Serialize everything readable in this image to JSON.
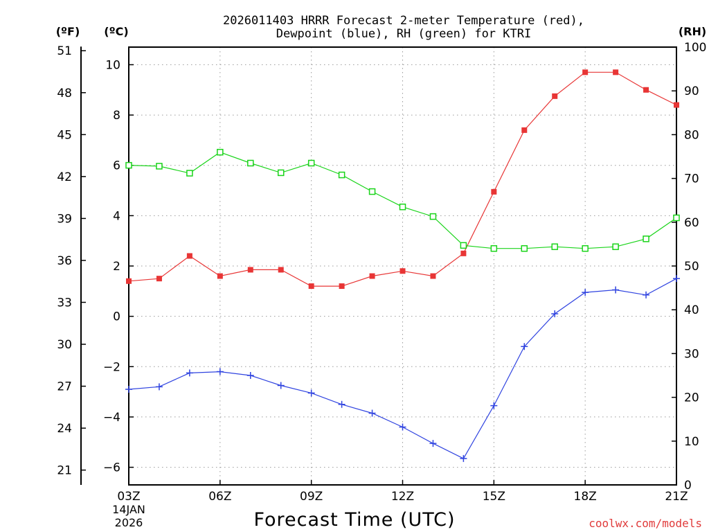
{
  "chart_data": {
    "type": "line",
    "title_line1": "2026011403 HRRR Forecast 2-meter Temperature (red),",
    "title_line2": "Dewpoint (blue), RH (green) for KTRI",
    "xlabel": "Forecast Time (UTC)",
    "date_lines": [
      "14JAN",
      "2026"
    ],
    "credit": "coolwx.com/models",
    "axis_headers": {
      "fahrenheit": "(ºF)",
      "celsius": "(ºC)",
      "rh": "(RH)"
    },
    "x_hours": [
      3,
      4,
      5,
      6,
      7,
      8,
      9,
      10,
      11,
      12,
      13,
      14,
      15,
      16,
      17,
      18,
      19,
      20,
      21
    ],
    "x_ticks": [
      {
        "hour": 3,
        "label": "03Z"
      },
      {
        "hour": 6,
        "label": "06Z"
      },
      {
        "hour": 9,
        "label": "09Z"
      },
      {
        "hour": 12,
        "label": "12Z"
      },
      {
        "hour": 15,
        "label": "15Z"
      },
      {
        "hour": 18,
        "label": "18Z"
      },
      {
        "hour": 21,
        "label": "21Z"
      }
    ],
    "x_range": [
      3,
      21
    ],
    "celsius_range": [
      -6.7,
      10.7
    ],
    "celsius_ticks": [
      {
        "value": 10,
        "label": "10"
      },
      {
        "value": 8,
        "label": "8"
      },
      {
        "value": 6,
        "label": "6"
      },
      {
        "value": 4,
        "label": "4"
      },
      {
        "value": 2,
        "label": "2"
      },
      {
        "value": 0,
        "label": "0"
      },
      {
        "value": -2,
        "label": "−2"
      },
      {
        "value": -4,
        "label": "−4"
      },
      {
        "value": -6,
        "label": "−6"
      }
    ],
    "fahrenheit_ticks": [
      {
        "value": 51,
        "label": "51"
      },
      {
        "value": 48,
        "label": "48"
      },
      {
        "value": 45,
        "label": "45"
      },
      {
        "value": 42,
        "label": "42"
      },
      {
        "value": 39,
        "label": "39"
      },
      {
        "value": 36,
        "label": "36"
      },
      {
        "value": 33,
        "label": "33"
      },
      {
        "value": 30,
        "label": "30"
      },
      {
        "value": 27,
        "label": "27"
      },
      {
        "value": 24,
        "label": "24"
      },
      {
        "value": 21,
        "label": "21"
      }
    ],
    "rh_range": [
      0,
      100
    ],
    "rh_ticks": [
      {
        "value": 100,
        "label": "100"
      },
      {
        "value": 90,
        "label": "90"
      },
      {
        "value": 80,
        "label": "80"
      },
      {
        "value": 70,
        "label": "70"
      },
      {
        "value": 60,
        "label": "60"
      },
      {
        "value": 50,
        "label": "50"
      },
      {
        "value": 40,
        "label": "40"
      },
      {
        "value": 30,
        "label": "30"
      },
      {
        "value": 20,
        "label": "20"
      },
      {
        "value": 10,
        "label": "10"
      },
      {
        "value": 0,
        "label": "0"
      }
    ],
    "grid": true,
    "series": [
      {
        "name": "Temperature",
        "axis": "celsius",
        "color": "#e83535",
        "marker": "filled-square",
        "values": [
          1.4,
          1.5,
          2.4,
          1.6,
          1.85,
          1.85,
          1.2,
          1.2,
          1.6,
          1.8,
          1.6,
          2.5,
          4.95,
          7.4,
          8.75,
          9.7,
          9.7,
          9.0,
          8.4
        ]
      },
      {
        "name": "Dewpoint",
        "axis": "celsius",
        "color": "#2f43e0",
        "marker": "plus",
        "values": [
          -2.9,
          -2.8,
          -2.25,
          -2.2,
          -2.35,
          -2.75,
          -3.05,
          -3.5,
          -3.85,
          -4.4,
          -5.05,
          -5.65,
          -3.55,
          -1.2,
          0.1,
          0.95,
          1.05,
          0.85,
          1.5
        ]
      },
      {
        "name": "RH",
        "axis": "rh",
        "color": "#19d419",
        "marker": "open-square",
        "values": [
          73,
          72.8,
          71.2,
          76,
          73.5,
          71.3,
          73.5,
          70.8,
          67,
          63.5,
          61.3,
          54.7,
          54,
          54,
          54.4,
          54,
          54.4,
          56.2,
          61
        ]
      }
    ]
  }
}
